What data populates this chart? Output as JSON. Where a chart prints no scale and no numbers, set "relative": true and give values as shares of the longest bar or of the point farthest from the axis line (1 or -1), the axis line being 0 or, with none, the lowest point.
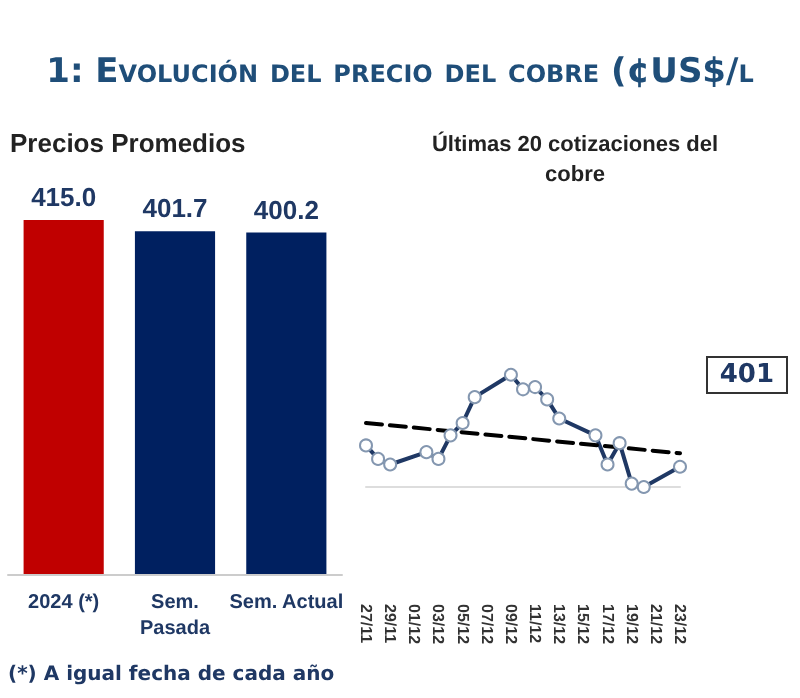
{
  "chart_data": [
    {
      "type": "bar",
      "title": "1: Evolución del precio del cobre (¢US$/l",
      "subtitle": "Precios Promedios",
      "categories": [
        "2024 (*)",
        "Sem. Pasada",
        "Sem. Actual"
      ],
      "values": [
        415.0,
        401.7,
        400.2
      ],
      "colors": [
        "#c00000",
        "#002060",
        "#002060"
      ],
      "value_labels": [
        "415.0",
        "401.7",
        "400.2"
      ],
      "tick_labels": "x",
      "grid": false,
      "annotations": [
        "(*) A igual fecha de cada año"
      ]
    },
    {
      "type": "line",
      "title": "Últimas 20 cotizaciones del cobre",
      "relative": true,
      "categories": [
        "27/11",
        null,
        "29/11",
        null,
        "01/12",
        null,
        "03/12",
        null,
        "05/12",
        null,
        "07/12",
        null,
        "09/12",
        null,
        "11/12",
        null,
        "13/12",
        null,
        "15/12",
        null,
        "17/12",
        null,
        "19/12",
        null,
        "21/12",
        null,
        "23/12"
      ],
      "series": [
        {
          "color": "#1f3864",
          "marker": "circle",
          "line_style": "solid",
          "values": [
            0.37,
            0.25,
            0.2,
            null,
            null,
            0.31,
            0.25,
            0.46,
            0.57,
            0.8,
            null,
            null,
            1,
            0.87,
            0.89,
            0.78,
            0.61,
            null,
            null,
            0.46,
            0.2,
            0.39,
            0.03,
            0,
            null,
            null,
            0.18
          ]
        },
        {
          "type": "line",
          "color": "#000000",
          "marker": "none",
          "line_style": "dashed",
          "values": [
            0.57,
            null,
            null,
            null,
            null,
            null,
            null,
            null,
            null,
            null,
            null,
            null,
            null,
            null,
            null,
            null,
            null,
            null,
            null,
            null,
            null,
            null,
            null,
            null,
            null,
            null,
            0.3
          ]
        }
      ],
      "tick_labels": "x",
      "grid": false,
      "annotations": [
        "401"
      ]
    }
  ]
}
